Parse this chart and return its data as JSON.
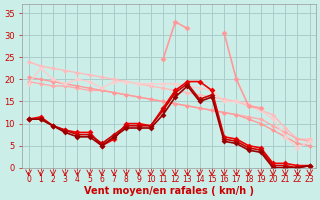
{
  "title": "",
  "xlabel": "Vent moyen/en rafales ( km/h )",
  "ylabel": "",
  "bg_color": "#cceee8",
  "grid_color": "#aacccc",
  "x_values": [
    0,
    1,
    2,
    3,
    4,
    5,
    6,
    7,
    8,
    9,
    10,
    11,
    12,
    13,
    14,
    15,
    16,
    17,
    18,
    19,
    20,
    21,
    22,
    23
  ],
  "series": [
    {
      "y": [
        24.0,
        23.0,
        22.5,
        22.0,
        21.5,
        21.0,
        20.5,
        20.0,
        19.5,
        19.0,
        18.5,
        18.0,
        17.5,
        17.0,
        16.5,
        16.0,
        15.5,
        15.0,
        14.0,
        13.0,
        12.0,
        9.0,
        6.5,
        6.5
      ],
      "color": "#ffbbbb",
      "lw": 1.0,
      "marker": "D",
      "ms": 2.5
    },
    {
      "y": [
        19.5,
        19.0,
        18.5,
        18.5,
        18.0,
        17.5,
        17.5,
        17.0,
        16.5,
        16.0,
        15.5,
        15.0,
        14.5,
        14.0,
        13.5,
        13.0,
        12.5,
        12.0,
        11.5,
        11.0,
        9.5,
        8.0,
        6.5,
        6.0
      ],
      "color": "#ffaaaa",
      "lw": 1.0,
      "marker": "D",
      "ms": 2.5
    },
    {
      "y": [
        20.5,
        20.0,
        19.5,
        19.0,
        18.5,
        18.0,
        17.5,
        17.0,
        16.5,
        16.0,
        15.5,
        15.0,
        14.5,
        14.0,
        13.5,
        13.0,
        12.5,
        12.0,
        11.0,
        10.0,
        8.5,
        7.0,
        5.5,
        5.0
      ],
      "color": "#ff9999",
      "lw": 1.0,
      "marker": "D",
      "ms": 2.5
    },
    {
      "y": [
        19.0,
        22.5,
        20.0,
        19.0,
        20.0,
        19.5,
        18.0,
        19.5,
        19.5,
        19.0,
        19.0,
        19.0,
        19.0,
        18.5,
        18.0,
        17.5,
        15.0,
        15.0,
        14.5,
        13.0,
        11.0,
        7.0,
        4.5,
        6.0
      ],
      "color": "#ffcccc",
      "lw": 1.0,
      "marker": "D",
      "ms": 2.5
    },
    {
      "y": [
        null,
        null,
        null,
        null,
        null,
        null,
        null,
        null,
        null,
        null,
        null,
        24.5,
        33.0,
        31.5,
        null,
        null,
        30.5,
        20.0,
        14.0,
        13.5,
        null,
        null,
        null,
        null
      ],
      "color": "#ff9999",
      "lw": 1.2,
      "marker": "D",
      "ms": 3.0
    },
    {
      "y": [
        11.0,
        11.5,
        9.5,
        8.5,
        8.0,
        8.0,
        5.0,
        6.5,
        10.0,
        10.0,
        9.5,
        13.5,
        17.5,
        19.5,
        19.5,
        17.5,
        7.0,
        6.5,
        5.0,
        4.5,
        1.0,
        1.0,
        0.5,
        0.5
      ],
      "color": "#ee0000",
      "lw": 1.2,
      "marker": "D",
      "ms": 3.0
    },
    {
      "y": [
        11.0,
        11.0,
        9.5,
        8.5,
        7.5,
        7.5,
        5.5,
        7.5,
        9.5,
        9.5,
        9.5,
        13.0,
        17.0,
        19.0,
        15.5,
        16.5,
        6.5,
        6.0,
        4.5,
        4.0,
        0.5,
        0.5,
        0.0,
        0.5
      ],
      "color": "#cc0000",
      "lw": 1.2,
      "marker": "D",
      "ms": 3.0
    },
    {
      "y": [
        11.0,
        11.0,
        9.5,
        8.0,
        7.0,
        7.0,
        5.0,
        7.0,
        9.0,
        9.0,
        9.0,
        12.0,
        16.0,
        18.5,
        15.0,
        16.0,
        6.0,
        5.5,
        4.0,
        3.5,
        0.0,
        0.0,
        0.0,
        0.5
      ],
      "color": "#990000",
      "lw": 1.2,
      "marker": "D",
      "ms": 3.0
    }
  ],
  "arrow_color": "#cc0000",
  "ylim": [
    0,
    37
  ],
  "yticks": [
    0,
    5,
    10,
    15,
    20,
    25,
    30,
    35
  ],
  "xtick_fontsize": 5.5,
  "ytick_fontsize": 6,
  "xlabel_fontsize": 7,
  "xlabel_color": "#cc0000",
  "ytick_color": "#cc0000",
  "xtick_color": "#cc0000"
}
